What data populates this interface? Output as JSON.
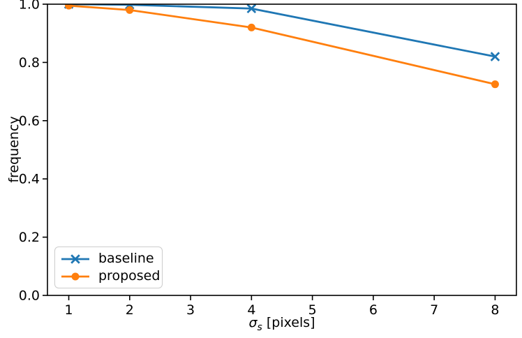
{
  "chart_data": {
    "type": "line",
    "title": "",
    "xlabel_parts": {
      "sigma": "σ",
      "sub": "s",
      "rest": " [pixels]"
    },
    "ylabel": "frequency",
    "x": [
      1,
      2,
      4,
      8
    ],
    "series": [
      {
        "name": "baseline",
        "color": "#1f77b4",
        "marker": "x",
        "values": [
          1.0,
          0.998,
          0.985,
          0.82
        ]
      },
      {
        "name": "proposed",
        "color": "#ff7f0e",
        "marker": "circle",
        "values": [
          0.995,
          0.98,
          0.92,
          0.725
        ]
      }
    ],
    "xlim": [
      0.65,
      8.35
    ],
    "ylim": [
      0.0,
      1.0
    ],
    "xticks": [
      "1",
      "2",
      "3",
      "4",
      "5",
      "6",
      "7",
      "8"
    ],
    "yticks": [
      "0.0",
      "0.2",
      "0.4",
      "0.6",
      "0.8",
      "1.0"
    ],
    "grid": false,
    "legend_position": "lower left",
    "axes_color": "#000000",
    "background_color": "#ffffff"
  }
}
